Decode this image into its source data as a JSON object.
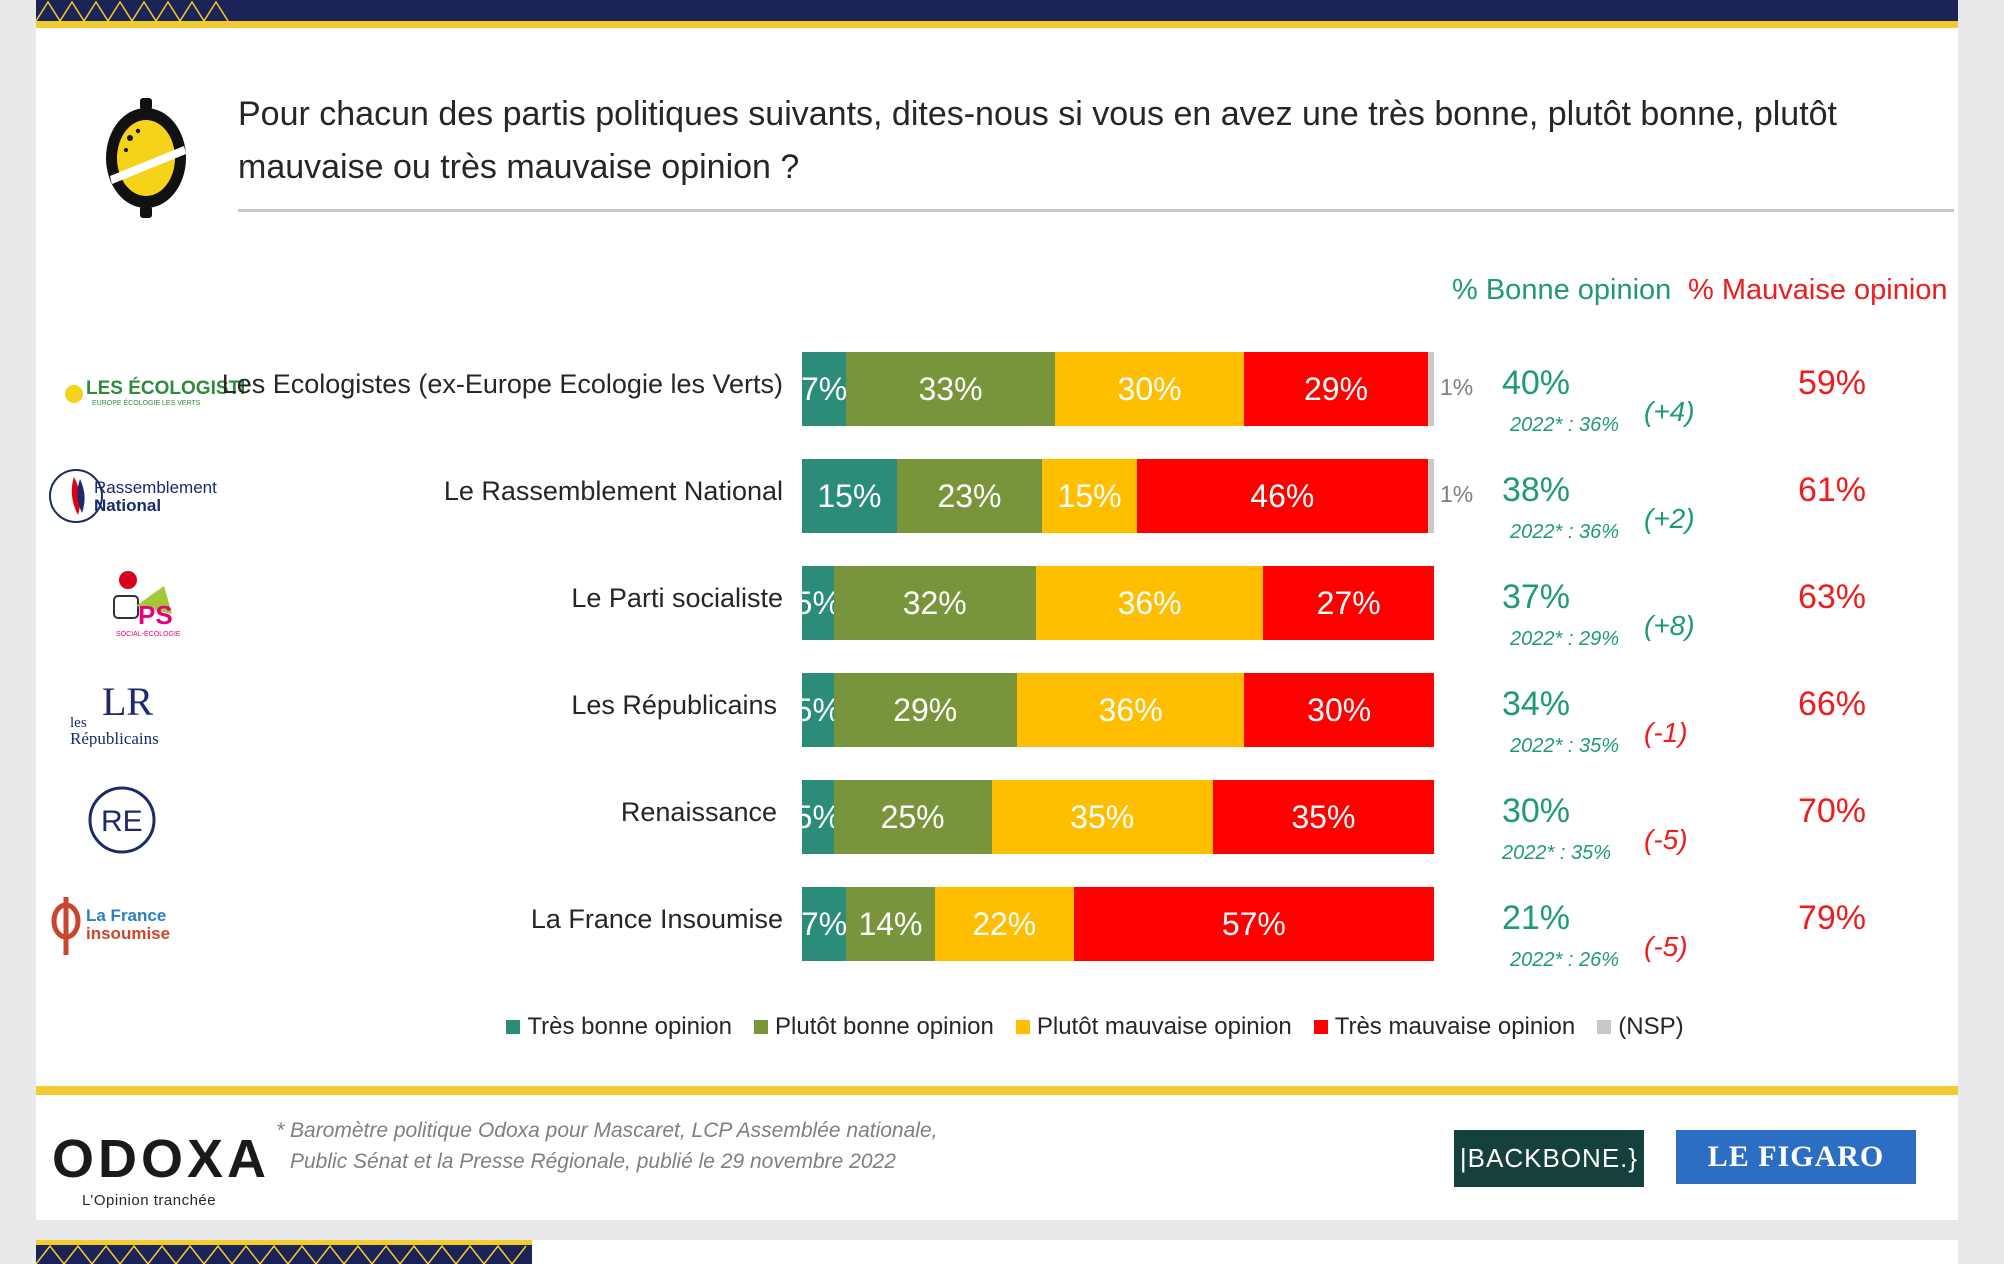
{
  "question": "Pour chacun des partis politiques suivants, dites-nous si vous en avez une très bonne, plutôt bonne, plutôt mauvaise ou très mauvaise opinion ?",
  "headers": {
    "good": "% Bonne opinion",
    "bad": "% Mauvaise opinion"
  },
  "colors": {
    "tres_bonne": "#2a8c79",
    "plutot_bonne": "#79953c",
    "plutot_mauvaise": "#ffbf00",
    "tres_mauvaise": "#ff0000",
    "nsp": "#c8c8c8",
    "good_text": "#1f9a76",
    "bad_text": "#ee1c1c"
  },
  "chart_data": {
    "type": "bar",
    "orientation": "horizontal",
    "stacked": true,
    "categories": [
      "Les Ecologistes (ex-Europe Ecologie les Verts)",
      "Le Rassemblement National",
      "Le Parti socialiste",
      "Les Républicains",
      "Renaissance",
      "La France Insoumise"
    ],
    "series": [
      {
        "name": "Très bonne opinion",
        "values": [
          7,
          15,
          5,
          5,
          5,
          7
        ]
      },
      {
        "name": "Plutôt bonne opinion",
        "values": [
          33,
          23,
          32,
          29,
          25,
          14
        ]
      },
      {
        "name": "Plutôt mauvaise opinion",
        "values": [
          30,
          15,
          36,
          36,
          35,
          22
        ]
      },
      {
        "name": "Très mauvaise opinion",
        "values": [
          29,
          46,
          27,
          30,
          35,
          57
        ]
      },
      {
        "name": "(NSP)",
        "values": [
          1,
          1,
          0,
          0,
          0,
          0
        ]
      }
    ],
    "good_opinion": [
      "40%",
      "38%",
      "37%",
      "34%",
      "30%",
      "21%"
    ],
    "reference_2022": [
      "2022* : 36%",
      "2022* : 36%",
      "2022* : 29%",
      "2022* : 35%",
      "2022* : 35%",
      "2022* : 26%"
    ],
    "change": [
      "(+4)",
      "(+2)",
      "(+8)",
      "(-1)",
      "(-5)",
      "(-5)"
    ],
    "bad_opinion": [
      "59%",
      "61%",
      "63%",
      "66%",
      "70%",
      "79%"
    ],
    "legend_position": "bottom"
  },
  "party_logos": {
    "ecologistes": {
      "main": "LES ÉCOLOGISTES",
      "sub": "EUROPE ÉCOLOGIE LES VERTS"
    },
    "rn": {
      "line1": "Rassemblement",
      "line2": "National"
    },
    "ps": {
      "main": "PS",
      "sub": "SOCIAL-ÉCOLOGIE"
    },
    "lr": {
      "mark": "LR",
      "line1": "les",
      "line2": "Républicains"
    },
    "re": {
      "mark": "RE"
    },
    "lfi": {
      "line1": "La France",
      "line2": "insoumise"
    }
  },
  "footer": {
    "brand": "ODOXA",
    "tagline": "L’Opinion tranchée",
    "source_line1": "* Baromètre politique Odoxa pour Mascaret, LCP Assemblée nationale,",
    "source_line2": "Public Sénat et la Presse Régionale, publié le 29 novembre 2022",
    "partner1": "|BACKBONE.}",
    "partner2": "LE FIGARO"
  }
}
